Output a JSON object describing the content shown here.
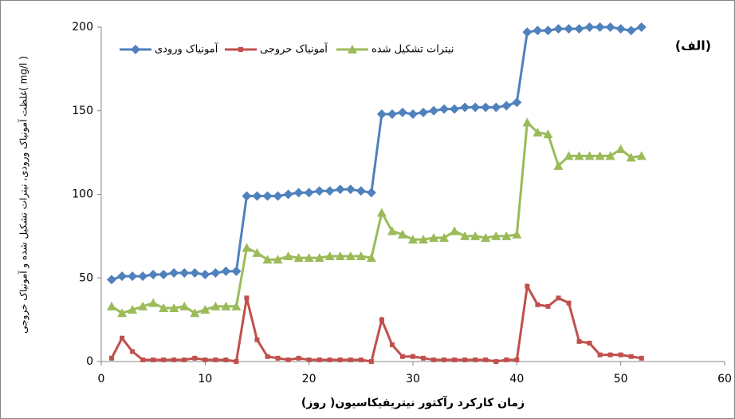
{
  "chart_data": {
    "type": "line",
    "x_label": "زمان کارکرد رآکتور نیتریفیکاسیون( روز)",
    "y_label": "غلظت آمونیاک ورودی، نیترات تشکیل شده و آمونیاک خروجی( mg/l )",
    "annotation": "(الف)",
    "x": [
      1,
      2,
      3,
      4,
      5,
      6,
      7,
      8,
      9,
      10,
      11,
      12,
      13,
      14,
      15,
      16,
      17,
      18,
      19,
      20,
      21,
      22,
      23,
      24,
      25,
      26,
      27,
      28,
      29,
      30,
      31,
      32,
      33,
      34,
      35,
      36,
      37,
      38,
      39,
      40,
      41,
      42,
      43,
      44,
      45,
      46,
      47,
      48,
      49,
      50,
      51,
      52
    ],
    "series": [
      {
        "name": "آمونیاک ورودی",
        "color": "#4f81bd",
        "marker": "diamond",
        "values": [
          49,
          51,
          51,
          51,
          52,
          52,
          53,
          53,
          53,
          52,
          53,
          54,
          54,
          99,
          99,
          99,
          99,
          100,
          101,
          101,
          102,
          102,
          103,
          103,
          102,
          101,
          148,
          148,
          149,
          148,
          149,
          150,
          151,
          151,
          152,
          152,
          152,
          152,
          153,
          155,
          197,
          198,
          198,
          199,
          199,
          199,
          200,
          200,
          200,
          199,
          198,
          200
        ]
      },
      {
        "name": "آمونیاک حروجی",
        "color": "#c0504d",
        "marker": "square",
        "values": [
          2,
          14,
          6,
          1,
          1,
          1,
          1,
          1,
          2,
          1,
          1,
          1,
          0,
          38,
          13,
          3,
          2,
          1,
          2,
          1,
          1,
          1,
          1,
          1,
          1,
          0,
          25,
          10,
          3,
          3,
          2,
          1,
          1,
          1,
          1,
          1,
          1,
          0,
          1,
          1,
          45,
          34,
          33,
          38,
          35,
          12,
          11,
          4,
          4,
          4,
          3,
          2
        ]
      },
      {
        "name": "نیترات تشکیل شده",
        "color": "#9bbb59",
        "marker": "triangle",
        "values": [
          33,
          29,
          31,
          33,
          35,
          32,
          32,
          33,
          29,
          31,
          33,
          33,
          33,
          68,
          65,
          61,
          61,
          63,
          62,
          62,
          62,
          63,
          63,
          63,
          63,
          62,
          89,
          78,
          76,
          73,
          73,
          74,
          74,
          78,
          75,
          75,
          74,
          75,
          75,
          76,
          143,
          137,
          136,
          117,
          123,
          123,
          123,
          123,
          123,
          127,
          122,
          123
        ]
      }
    ],
    "xlim": [
      0,
      60
    ],
    "xticks": [
      0,
      10,
      20,
      30,
      40,
      50,
      60
    ],
    "ylim": [
      0,
      200
    ],
    "yticks": [
      0,
      50,
      100,
      150,
      200
    ],
    "grid": false
  }
}
